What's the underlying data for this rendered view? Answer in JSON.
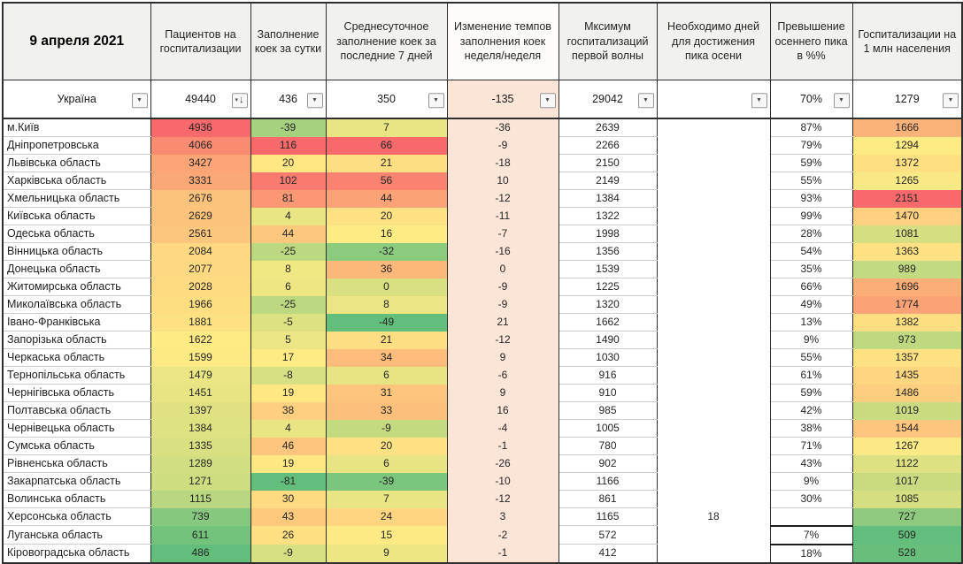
{
  "header": {
    "date": "9 апреля 2021",
    "columns": [
      "Пациентов на госпитализации",
      "Заполнение коек за сутки",
      "Среднесуточное заполнение коек за последние 7 дней",
      "Изменение темпов заполнения коек неделя/неделя",
      "Мксимум госпитализаций первой волны",
      "Необходимо дней для достижения пика осени",
      "Превышение осеннего пика в %%",
      "Госпитализации на 1 млн населения"
    ]
  },
  "filter_row": {
    "region": "Україна",
    "patients": "49440",
    "daily": "436",
    "avg7": "350",
    "change": "-135",
    "max_wave1": "29042",
    "days_to_peak": "",
    "exceed": "70%",
    "per_million": "1279"
  },
  "rows": [
    {
      "name": "м.Київ",
      "patients": 4936,
      "daily": -39,
      "avg7": 7,
      "change": -36,
      "max_wave1": 2639,
      "days_to_peak": "",
      "exceed": "87%",
      "per_million": 1666
    },
    {
      "name": "Дніпропетровська",
      "patients": 4066,
      "daily": 116,
      "avg7": 66,
      "change": -9,
      "max_wave1": 2266,
      "days_to_peak": "",
      "exceed": "79%",
      "per_million": 1294
    },
    {
      "name": "Львівська область",
      "patients": 3427,
      "daily": 20,
      "avg7": 21,
      "change": -18,
      "max_wave1": 2150,
      "days_to_peak": "",
      "exceed": "59%",
      "per_million": 1372
    },
    {
      "name": "Харківська область",
      "patients": 3331,
      "daily": 102,
      "avg7": 56,
      "change": 10,
      "max_wave1": 2149,
      "days_to_peak": "",
      "exceed": "55%",
      "per_million": 1265
    },
    {
      "name": "Хмельницька область",
      "patients": 2676,
      "daily": 81,
      "avg7": 44,
      "change": -12,
      "max_wave1": 1384,
      "days_to_peak": "",
      "exceed": "93%",
      "per_million": 2151
    },
    {
      "name": "Київська область",
      "patients": 2629,
      "daily": 4,
      "avg7": 20,
      "change": -11,
      "max_wave1": 1322,
      "days_to_peak": "",
      "exceed": "99%",
      "per_million": 1470
    },
    {
      "name": "Одеська область",
      "patients": 2561,
      "daily": 44,
      "avg7": 16,
      "change": -7,
      "max_wave1": 1998,
      "days_to_peak": "",
      "exceed": "28%",
      "per_million": 1081
    },
    {
      "name": "Вінницька область",
      "patients": 2084,
      "daily": -25,
      "avg7": -32,
      "change": -16,
      "max_wave1": 1356,
      "days_to_peak": "",
      "exceed": "54%",
      "per_million": 1363
    },
    {
      "name": "Донецька область",
      "patients": 2077,
      "daily": 8,
      "avg7": 36,
      "change": 0,
      "max_wave1": 1539,
      "days_to_peak": "",
      "exceed": "35%",
      "per_million": 989
    },
    {
      "name": "Житомирська область",
      "patients": 2028,
      "daily": 6,
      "avg7": 0,
      "change": -9,
      "max_wave1": 1225,
      "days_to_peak": "",
      "exceed": "66%",
      "per_million": 1696
    },
    {
      "name": "Миколаївська область",
      "patients": 1966,
      "daily": -25,
      "avg7": 8,
      "change": -9,
      "max_wave1": 1320,
      "days_to_peak": "",
      "exceed": "49%",
      "per_million": 1774
    },
    {
      "name": "Івано-Франківська",
      "patients": 1881,
      "daily": -5,
      "avg7": -49,
      "change": 21,
      "max_wave1": 1662,
      "days_to_peak": "",
      "exceed": "13%",
      "per_million": 1382
    },
    {
      "name": "Запорізька область",
      "patients": 1622,
      "daily": 5,
      "avg7": 21,
      "change": -12,
      "max_wave1": 1490,
      "days_to_peak": "",
      "exceed": "9%",
      "per_million": 973
    },
    {
      "name": "Черкаська область",
      "patients": 1599,
      "daily": 17,
      "avg7": 34,
      "change": 9,
      "max_wave1": 1030,
      "days_to_peak": "",
      "exceed": "55%",
      "per_million": 1357
    },
    {
      "name": "Тернопільська область",
      "patients": 1479,
      "daily": -8,
      "avg7": 6,
      "change": -6,
      "max_wave1": 916,
      "days_to_peak": "",
      "exceed": "61%",
      "per_million": 1435
    },
    {
      "name": "Чернігівська область",
      "patients": 1451,
      "daily": 19,
      "avg7": 31,
      "change": 9,
      "max_wave1": 910,
      "days_to_peak": "",
      "exceed": "59%",
      "per_million": 1486
    },
    {
      "name": "Полтавська область",
      "patients": 1397,
      "daily": 38,
      "avg7": 33,
      "change": 16,
      "max_wave1": 985,
      "days_to_peak": "",
      "exceed": "42%",
      "per_million": 1019
    },
    {
      "name": "Чернівецька область",
      "patients": 1384,
      "daily": 4,
      "avg7": -9,
      "change": -4,
      "max_wave1": 1005,
      "days_to_peak": "",
      "exceed": "38%",
      "per_million": 1544
    },
    {
      "name": "Сумська область",
      "patients": 1335,
      "daily": 46,
      "avg7": 20,
      "change": -1,
      "max_wave1": 780,
      "days_to_peak": "",
      "exceed": "71%",
      "per_million": 1267
    },
    {
      "name": "Рівненська область",
      "patients": 1289,
      "daily": 19,
      "avg7": 6,
      "change": -26,
      "max_wave1": 902,
      "days_to_peak": "",
      "exceed": "43%",
      "per_million": 1122
    },
    {
      "name": "Закарпатська область",
      "patients": 1271,
      "daily": -81,
      "avg7": -39,
      "change": -10,
      "max_wave1": 1166,
      "days_to_peak": "",
      "exceed": "9%",
      "per_million": 1017
    },
    {
      "name": "Волинська область",
      "patients": 1115,
      "daily": 30,
      "avg7": 7,
      "change": -12,
      "max_wave1": 861,
      "days_to_peak": "",
      "exceed": "30%",
      "per_million": 1085
    },
    {
      "name": "Херсонська область",
      "patients": 739,
      "daily": 43,
      "avg7": 24,
      "change": 3,
      "max_wave1": 1165,
      "days_to_peak": "18",
      "exceed": "",
      "per_million": 727
    },
    {
      "name": "Луганська область",
      "patients": 611,
      "daily": 26,
      "avg7": 15,
      "change": -2,
      "max_wave1": 572,
      "days_to_peak": "",
      "exceed": "7%",
      "per_million": 509
    },
    {
      "name": "Кіровоградська область",
      "patients": 486,
      "daily": -9,
      "avg7": 9,
      "change": -1,
      "max_wave1": 412,
      "days_to_peak": "",
      "exceed": "18%",
      "per_million": 528
    }
  ],
  "icons": {
    "filter_dropdown": "▼",
    "filter_small": "▾",
    "sort_descending": "↓"
  },
  "colors": {
    "heat_red": "#F8696B",
    "heat_yellow": "#FFEB84",
    "heat_green": "#63BE7B",
    "change_column_bg": "#FCE4D6",
    "header_bg": "#F1F1F0",
    "grid_dark": "#2E2E2E",
    "grid_light": "#CCCCCC"
  }
}
